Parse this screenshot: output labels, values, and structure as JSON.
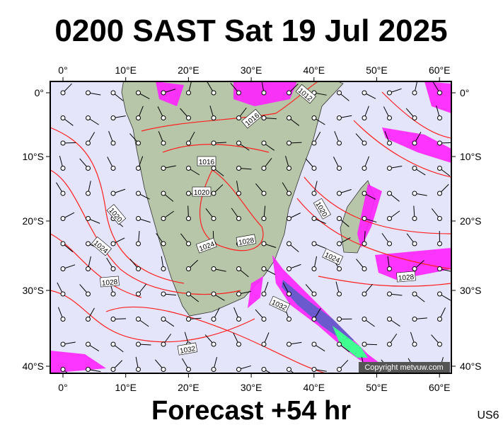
{
  "header": {
    "title": "0200 SAST Sat 19 Jul 2025"
  },
  "map": {
    "lon_labels": [
      "0°",
      "10°E",
      "20°E",
      "30°E",
      "40°E",
      "50°E",
      "60°E"
    ],
    "lat_labels": [
      "0°",
      "10°S",
      "20°S",
      "30°S",
      "40°S"
    ],
    "isobar_labels": [
      "1016",
      "1016",
      "1012",
      "1020",
      "1020",
      "1024",
      "1028",
      "1024",
      "1028",
      "1032",
      "1020",
      "1024",
      "1028",
      "1032"
    ],
    "copyright": "Copyright metvuw.com"
  },
  "footer": {
    "forecast": "Forecast +54 hr",
    "code": "US6"
  }
}
